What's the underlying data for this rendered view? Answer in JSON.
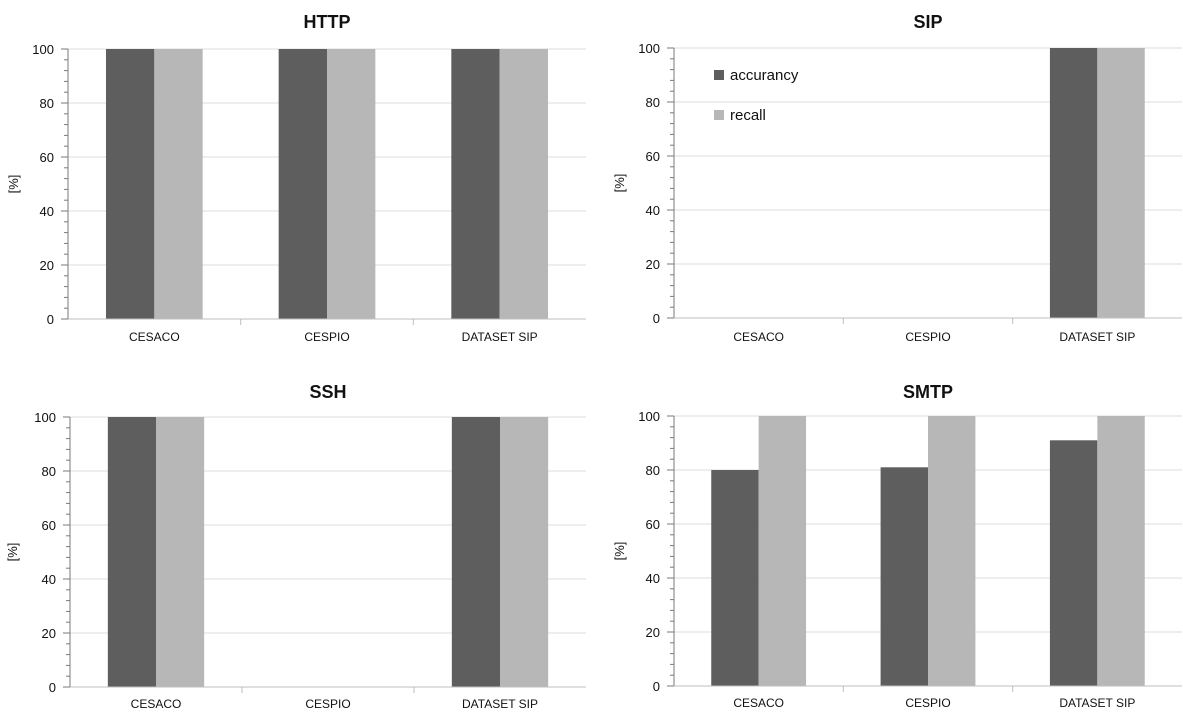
{
  "chart_data": [
    {
      "type": "bar",
      "title": "HTTP",
      "xlabel": "",
      "ylabel": "[%]",
      "ylim": [
        0,
        100
      ],
      "yticks": [
        0,
        20,
        40,
        60,
        80,
        100
      ],
      "grid": true,
      "legend": false,
      "categories": [
        "CESACO",
        "CESPIO",
        "DATASET SIP"
      ],
      "series": [
        {
          "name": "accurancy",
          "color": "#5e5e5e",
          "values": [
            100,
            100,
            100
          ]
        },
        {
          "name": "recall",
          "color": "#b7b7b7",
          "values": [
            100,
            100,
            100
          ]
        }
      ]
    },
    {
      "type": "bar",
      "title": "SIP",
      "xlabel": "",
      "ylabel": "[%]",
      "ylim": [
        0,
        100
      ],
      "yticks": [
        0,
        20,
        40,
        60,
        80,
        100
      ],
      "grid": true,
      "legend": true,
      "legend_position": "top-left",
      "categories": [
        "CESACO",
        "CESPIO",
        "DATASET SIP"
      ],
      "series": [
        {
          "name": "accurancy",
          "color": "#5e5e5e",
          "values": [
            0,
            0,
            100
          ]
        },
        {
          "name": "recall",
          "color": "#b7b7b7",
          "values": [
            0,
            0,
            100
          ]
        }
      ]
    },
    {
      "type": "bar",
      "title": "SSH",
      "xlabel": "",
      "ylabel": "[%]",
      "ylim": [
        0,
        100
      ],
      "yticks": [
        0,
        20,
        40,
        60,
        80,
        100
      ],
      "grid": true,
      "legend": false,
      "categories": [
        "CESACO",
        "CESPIO",
        "DATASET SIP"
      ],
      "series": [
        {
          "name": "accurancy",
          "color": "#5e5e5e",
          "values": [
            100,
            0,
            100
          ]
        },
        {
          "name": "recall",
          "color": "#b7b7b7",
          "values": [
            100,
            0,
            100
          ]
        }
      ]
    },
    {
      "type": "bar",
      "title": "SMTP",
      "xlabel": "",
      "ylabel": "[%]",
      "ylim": [
        0,
        100
      ],
      "yticks": [
        0,
        20,
        40,
        60,
        80,
        100
      ],
      "grid": true,
      "legend": false,
      "categories": [
        "CESACO",
        "CESPIO",
        "DATASET SIP"
      ],
      "series": [
        {
          "name": "accurancy",
          "color": "#5e5e5e",
          "values": [
            80,
            81,
            91
          ]
        },
        {
          "name": "recall",
          "color": "#b7b7b7",
          "values": [
            100,
            100,
            100
          ]
        }
      ]
    }
  ]
}
